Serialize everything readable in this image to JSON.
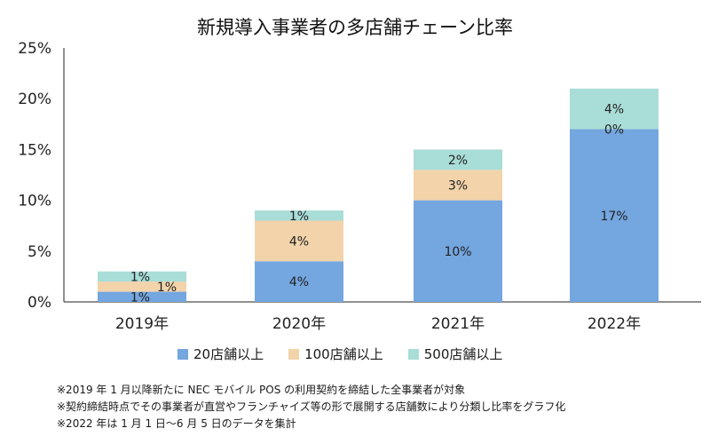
{
  "chart_data": {
    "type": "bar",
    "stacked": true,
    "title": "新規導入事業者の多店舗チェーン比率",
    "categories": [
      "2019年",
      "2020年",
      "2021年",
      "2022年"
    ],
    "ylim": [
      0,
      25
    ],
    "yticks": [
      0,
      5,
      10,
      15,
      20,
      25
    ],
    "ytick_labels": [
      "0%",
      "5%",
      "10%",
      "15%",
      "20%",
      "25%"
    ],
    "series": [
      {
        "name": "20店舗以上",
        "color": "#74a6e0",
        "values": [
          1,
          4,
          10,
          17
        ],
        "labels": [
          "1%",
          "4%",
          "10%",
          "17%"
        ]
      },
      {
        "name": "100店舗以上",
        "color": "#f2d3aa",
        "values": [
          1,
          4,
          3,
          0
        ],
        "labels": [
          "1%",
          "4%",
          "3%",
          "0%"
        ]
      },
      {
        "name": "500店舗以上",
        "color": "#a9ddd7",
        "values": [
          1,
          1,
          2,
          4
        ],
        "labels": [
          "1%",
          "1%",
          "2%",
          "4%"
        ]
      }
    ]
  },
  "notes": [
    "※2019 年 1 月以降新たに NEC モバイル POS の利用契約を締結した全事業者が対象",
    "※契約締結時点でその事業者が直営やフランチャイズ等の形で展開する店舗数により分類し比率をグラフ化",
    "※2022 年は 1 月 1 日〜6 月 5 日のデータを集計"
  ]
}
